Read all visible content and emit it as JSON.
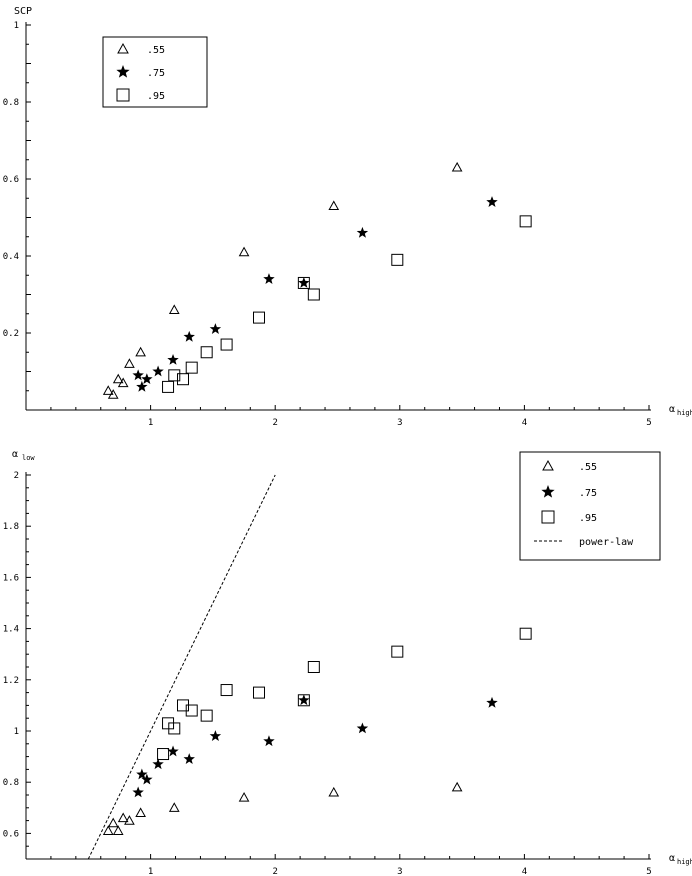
{
  "chart_data": [
    {
      "type": "scatter",
      "ylabel": "SCP",
      "xlabel_main": "α",
      "xlabel_sub": "high",
      "xlim": [
        0,
        5
      ],
      "ylim": [
        0,
        1
      ],
      "xticks": [
        "1",
        "2",
        "3",
        "4",
        "5"
      ],
      "yticks": [
        "0.2",
        "0.4",
        "0.6",
        "0.8",
        "1"
      ],
      "legend_position": "top-left",
      "series": [
        {
          "name": ".55",
          "marker": "triangle",
          "x": [
            0.66,
            0.7,
            0.74,
            0.78,
            0.83,
            0.92,
            1.19,
            1.75,
            2.47,
            3.46
          ],
          "y": [
            0.05,
            0.04,
            0.08,
            0.07,
            0.12,
            0.15,
            0.26,
            0.41,
            0.53,
            0.63
          ]
        },
        {
          "name": ".75",
          "marker": "star",
          "x": [
            0.9,
            0.93,
            0.97,
            1.06,
            1.18,
            1.31,
            1.52,
            1.95,
            2.23,
            2.7,
            3.74
          ],
          "y": [
            0.09,
            0.06,
            0.08,
            0.1,
            0.13,
            0.19,
            0.21,
            0.34,
            0.33,
            0.46,
            0.54
          ]
        },
        {
          "name": ".95",
          "marker": "square",
          "x": [
            1.14,
            1.19,
            1.26,
            1.33,
            1.45,
            1.61,
            1.87,
            2.23,
            2.31,
            2.98,
            4.01
          ],
          "y": [
            0.06,
            0.09,
            0.08,
            0.11,
            0.15,
            0.17,
            0.24,
            0.33,
            0.3,
            0.39,
            0.49
          ]
        }
      ]
    },
    {
      "type": "scatter",
      "ylabel_main": "α",
      "ylabel_sub": "low",
      "xlabel_main": "α",
      "xlabel_sub": "high",
      "xlim": [
        0,
        5
      ],
      "ylim": [
        0.5,
        2
      ],
      "xticks": [
        "1",
        "2",
        "3",
        "4",
        "5"
      ],
      "yticks": [
        "0.6",
        "0.8",
        "1",
        "1.2",
        "1.4",
        "1.6",
        "1.8",
        "2"
      ],
      "legend_position": "top-right",
      "series": [
        {
          "name": ".55",
          "marker": "triangle",
          "x": [
            0.66,
            0.7,
            0.74,
            0.78,
            0.83,
            0.92,
            1.19,
            1.75,
            2.47,
            3.46
          ],
          "y": [
            0.61,
            0.64,
            0.61,
            0.66,
            0.65,
            0.68,
            0.7,
            0.74,
            0.76,
            0.78
          ]
        },
        {
          "name": ".75",
          "marker": "star",
          "x": [
            0.9,
            0.93,
            0.97,
            1.06,
            1.18,
            1.31,
            1.52,
            1.95,
            2.23,
            2.7,
            3.74
          ],
          "y": [
            0.76,
            0.83,
            0.81,
            0.87,
            0.92,
            0.89,
            0.98,
            0.96,
            1.12,
            1.01,
            1.11
          ]
        },
        {
          "name": ".95",
          "marker": "square",
          "x": [
            1.1,
            1.14,
            1.19,
            1.26,
            1.33,
            1.45,
            1.61,
            1.87,
            2.23,
            2.31,
            2.98,
            4.01
          ],
          "y": [
            0.91,
            1.03,
            1.01,
            1.1,
            1.08,
            1.06,
            1.16,
            1.15,
            1.12,
            1.25,
            1.31,
            1.38
          ]
        },
        {
          "name": "power-law",
          "marker": "dashed-line",
          "x": [
            0.5,
            2.0
          ],
          "y": [
            0.5,
            2.0
          ]
        }
      ]
    }
  ]
}
